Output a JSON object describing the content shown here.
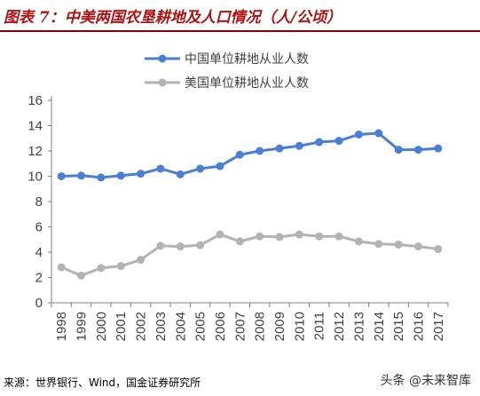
{
  "header": {
    "title": "图表 7：中美两国农垦耕地及人口情况（人/公顷）"
  },
  "footer": {
    "source": "来源：世界银行、Wind，国金证券研究所",
    "watermark": "头条 @未来智库"
  },
  "chart_data": {
    "type": "line",
    "categories": [
      "1998",
      "1999",
      "2000",
      "2001",
      "2002",
      "2003",
      "2004",
      "2005",
      "2006",
      "2007",
      "2008",
      "2009",
      "2010",
      "2011",
      "2012",
      "2013",
      "2014",
      "2015",
      "2016",
      "2017"
    ],
    "series": [
      {
        "name": "中国单位耕地从业人数",
        "color": "#4a7fd4",
        "values": [
          10.0,
          10.05,
          9.9,
          10.05,
          10.2,
          10.6,
          10.15,
          10.6,
          10.8,
          11.7,
          12.0,
          12.2,
          12.4,
          12.7,
          12.8,
          13.3,
          13.4,
          12.1,
          12.1,
          12.2
        ]
      },
      {
        "name": "美国单位耕地从业人数",
        "color": "#b3b3b3",
        "values": [
          2.8,
          2.15,
          2.75,
          2.9,
          3.4,
          4.5,
          4.45,
          4.55,
          5.4,
          4.85,
          5.25,
          5.2,
          5.4,
          5.25,
          5.25,
          4.85,
          4.65,
          4.6,
          4.45,
          4.25
        ]
      }
    ],
    "ylim": [
      0,
      16
    ],
    "yticks": [
      "0",
      "2",
      "4",
      "6",
      "8",
      "10",
      "12",
      "14",
      "16"
    ],
    "grid": false,
    "legend": "top-center"
  }
}
